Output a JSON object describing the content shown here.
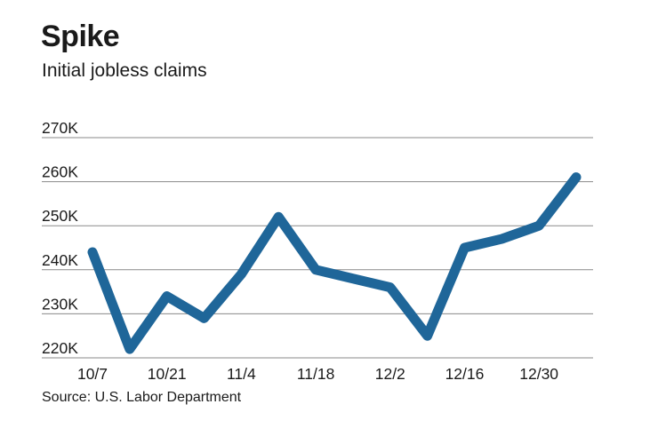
{
  "header": {
    "title": "Spike",
    "subtitle": "Initial jobless claims"
  },
  "footer": {
    "source": "Source: U.S. Labor Department"
  },
  "colors": {
    "line": "#1f6699",
    "grid": "#8a8a8a",
    "text": "#1a1a1a"
  },
  "chart_data": {
    "type": "line",
    "title": "Spike",
    "subtitle": "Initial jobless claims",
    "xlabel": "",
    "ylabel": "",
    "unit": "K",
    "ylim": [
      220,
      270
    ],
    "yticks": [
      220,
      230,
      240,
      250,
      260,
      270
    ],
    "ytick_labels": [
      "220K",
      "230K",
      "240K",
      "250K",
      "260K",
      "270K"
    ],
    "x": [
      "10/7",
      "10/14",
      "10/21",
      "10/28",
      "11/4",
      "11/11",
      "11/18",
      "11/25",
      "12/2",
      "12/9",
      "12/16",
      "12/23",
      "12/30",
      "1/6"
    ],
    "xtick_labels": [
      "10/7",
      "10/21",
      "11/4",
      "11/18",
      "12/2",
      "12/16",
      "12/30"
    ],
    "series": [
      {
        "name": "Initial jobless claims",
        "values": [
          244,
          222,
          234,
          229,
          239,
          252,
          240,
          238,
          236,
          225,
          245,
          247,
          250,
          261
        ]
      }
    ],
    "grid": true,
    "source": "Source: U.S. Labor Department"
  }
}
